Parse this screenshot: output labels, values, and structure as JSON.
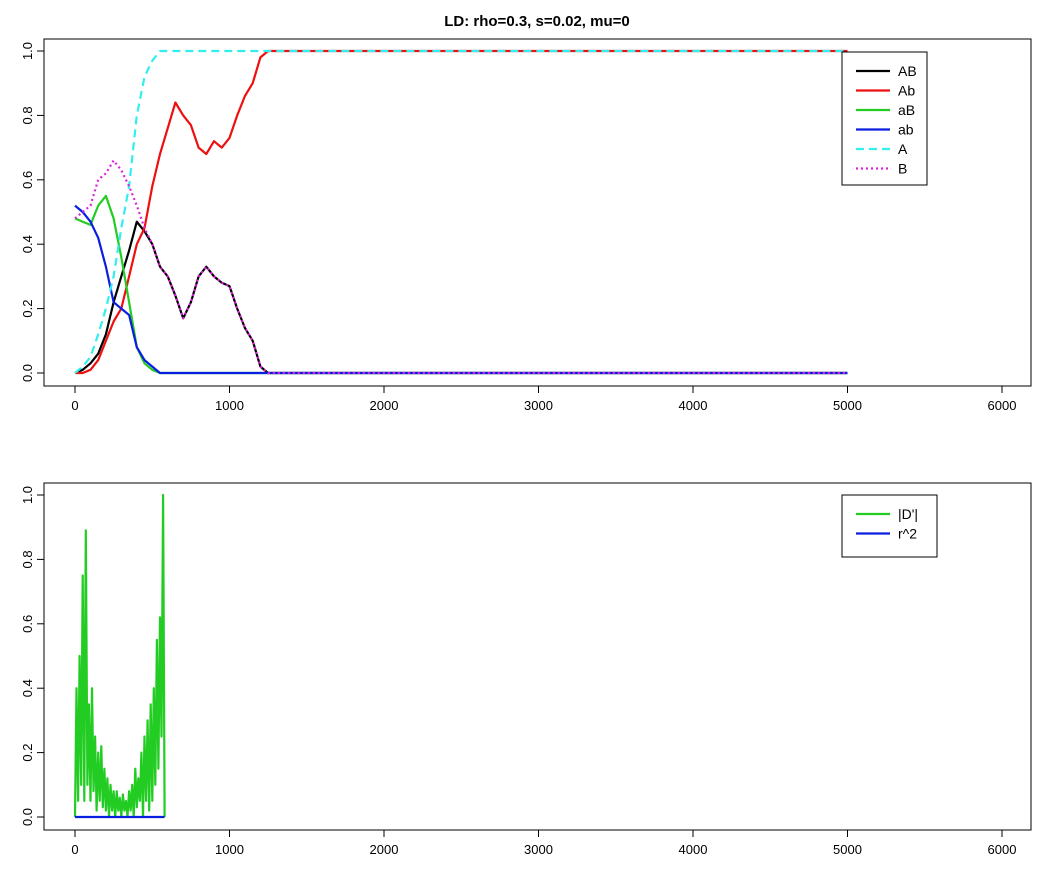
{
  "chart_data": [
    {
      "type": "line",
      "title": "LD: rho=0.3, s=0.02, mu=0",
      "xlabel": "",
      "ylabel": "",
      "xlim": [
        0,
        6000
      ],
      "ylim": [
        0,
        1
      ],
      "xticks": [
        0,
        1000,
        2000,
        3000,
        4000,
        5000,
        6000
      ],
      "yticks": [
        0.0,
        0.2,
        0.4,
        0.6,
        0.8,
        1.0
      ],
      "xtick_labels": [
        "0",
        "1000",
        "2000",
        "3000",
        "4000",
        "5000",
        "6000"
      ],
      "ytick_labels": [
        "0.0",
        "0.2",
        "0.4",
        "0.6",
        "0.8",
        "1.0"
      ],
      "legend_position": "top-right",
      "grid": false,
      "series": [
        {
          "name": "AB",
          "color": "#000000",
          "dash": "solid",
          "x": [
            0,
            50,
            100,
            150,
            200,
            250,
            300,
            350,
            400,
            450,
            500,
            550,
            600,
            650,
            700,
            750,
            800,
            850,
            900,
            950,
            1000,
            1050,
            1100,
            1150,
            1200,
            1250,
            5000
          ],
          "y": [
            0.0,
            0.01,
            0.03,
            0.06,
            0.12,
            0.22,
            0.3,
            0.38,
            0.47,
            0.44,
            0.4,
            0.33,
            0.3,
            0.24,
            0.17,
            0.22,
            0.3,
            0.33,
            0.3,
            0.28,
            0.27,
            0.2,
            0.14,
            0.1,
            0.02,
            0.0,
            0.0
          ]
        },
        {
          "name": "Ab",
          "color": "#ee1010",
          "dash": "solid",
          "x": [
            0,
            50,
            100,
            150,
            200,
            250,
            300,
            350,
            400,
            450,
            500,
            550,
            600,
            650,
            700,
            750,
            800,
            850,
            900,
            950,
            1000,
            1050,
            1100,
            1150,
            1200,
            1250,
            5000
          ],
          "y": [
            0.0,
            0.0,
            0.01,
            0.04,
            0.1,
            0.16,
            0.2,
            0.3,
            0.4,
            0.45,
            0.58,
            0.68,
            0.76,
            0.84,
            0.8,
            0.77,
            0.7,
            0.68,
            0.72,
            0.7,
            0.73,
            0.8,
            0.86,
            0.9,
            0.98,
            1.0,
            1.0
          ]
        },
        {
          "name": "aB",
          "color": "#22cc22",
          "dash": "solid",
          "x": [
            0,
            50,
            100,
            150,
            200,
            250,
            300,
            350,
            400,
            450,
            500,
            550,
            600,
            5000
          ],
          "y": [
            0.48,
            0.47,
            0.46,
            0.52,
            0.55,
            0.48,
            0.36,
            0.22,
            0.08,
            0.03,
            0.01,
            0.0,
            0.0,
            0.0
          ]
        },
        {
          "name": "ab",
          "color": "#0a1ee0",
          "dash": "solid",
          "x": [
            0,
            50,
            100,
            150,
            200,
            250,
            300,
            350,
            400,
            450,
            500,
            550,
            600,
            5000
          ],
          "y": [
            0.52,
            0.5,
            0.47,
            0.42,
            0.33,
            0.22,
            0.2,
            0.18,
            0.08,
            0.04,
            0.02,
            0.0,
            0.0,
            0.0
          ]
        },
        {
          "name": "A",
          "color": "#33eeee",
          "dash": "dashed",
          "x": [
            0,
            50,
            100,
            150,
            200,
            250,
            300,
            350,
            400,
            450,
            500,
            550,
            600,
            5000
          ],
          "y": [
            0.0,
            0.02,
            0.05,
            0.12,
            0.2,
            0.3,
            0.45,
            0.58,
            0.8,
            0.92,
            0.97,
            1.0,
            1.0,
            1.0
          ]
        },
        {
          "name": "B",
          "color": "#dd22dd",
          "dash": "dotted",
          "x": [
            0,
            50,
            100,
            150,
            200,
            250,
            300,
            350,
            400,
            450,
            500,
            550,
            600,
            650,
            700,
            750,
            800,
            850,
            900,
            950,
            1000,
            1050,
            1100,
            1150,
            1200,
            1250,
            5000
          ],
          "y": [
            0.48,
            0.5,
            0.52,
            0.6,
            0.62,
            0.66,
            0.63,
            0.58,
            0.52,
            0.45,
            0.4,
            0.33,
            0.3,
            0.24,
            0.17,
            0.22,
            0.3,
            0.33,
            0.3,
            0.28,
            0.27,
            0.2,
            0.14,
            0.1,
            0.02,
            0.0,
            0.0
          ]
        }
      ]
    },
    {
      "type": "line",
      "title": "",
      "xlabel": "",
      "ylabel": "",
      "xlim": [
        0,
        6000
      ],
      "ylim": [
        0,
        1
      ],
      "xticks": [
        0,
        1000,
        2000,
        3000,
        4000,
        5000,
        6000
      ],
      "yticks": [
        0.0,
        0.2,
        0.4,
        0.6,
        0.8,
        1.0
      ],
      "xtick_labels": [
        "0",
        "1000",
        "2000",
        "3000",
        "4000",
        "5000",
        "6000"
      ],
      "ytick_labels": [
        "0.0",
        "0.2",
        "0.4",
        "0.6",
        "0.8",
        "1.0"
      ],
      "legend_position": "top-right",
      "grid": false,
      "series": [
        {
          "name": "|D'|",
          "color": "#22cc22",
          "dash": "solid",
          "x": [
            0,
            10,
            20,
            30,
            40,
            50,
            60,
            70,
            80,
            90,
            100,
            110,
            120,
            130,
            140,
            150,
            160,
            170,
            180,
            190,
            200,
            210,
            220,
            230,
            240,
            250,
            260,
            270,
            280,
            290,
            300,
            310,
            320,
            330,
            340,
            350,
            360,
            370,
            380,
            390,
            400,
            410,
            420,
            430,
            440,
            450,
            460,
            470,
            480,
            490,
            500,
            510,
            520,
            530,
            540,
            550,
            560,
            570,
            580
          ],
          "y": [
            0.0,
            0.4,
            0.05,
            0.5,
            0.1,
            0.75,
            0.05,
            0.89,
            0.1,
            0.35,
            0.05,
            0.4,
            0.08,
            0.25,
            0.02,
            0.2,
            0.05,
            0.22,
            0.03,
            0.15,
            0.02,
            0.12,
            0.0,
            0.1,
            0.02,
            0.08,
            0.0,
            0.08,
            0.02,
            0.06,
            0.0,
            0.07,
            0.02,
            0.05,
            0.0,
            0.08,
            0.02,
            0.1,
            0.0,
            0.15,
            0.03,
            0.12,
            0.05,
            0.2,
            0.0,
            0.25,
            0.05,
            0.3,
            0.02,
            0.35,
            0.05,
            0.4,
            0.1,
            0.55,
            0.15,
            0.62,
            0.25,
            1.0,
            0.0
          ]
        },
        {
          "name": "r^2",
          "color": "#0a1ee0",
          "dash": "solid",
          "x": [
            0,
            580
          ],
          "y": [
            0.0,
            0.0
          ]
        }
      ]
    }
  ]
}
